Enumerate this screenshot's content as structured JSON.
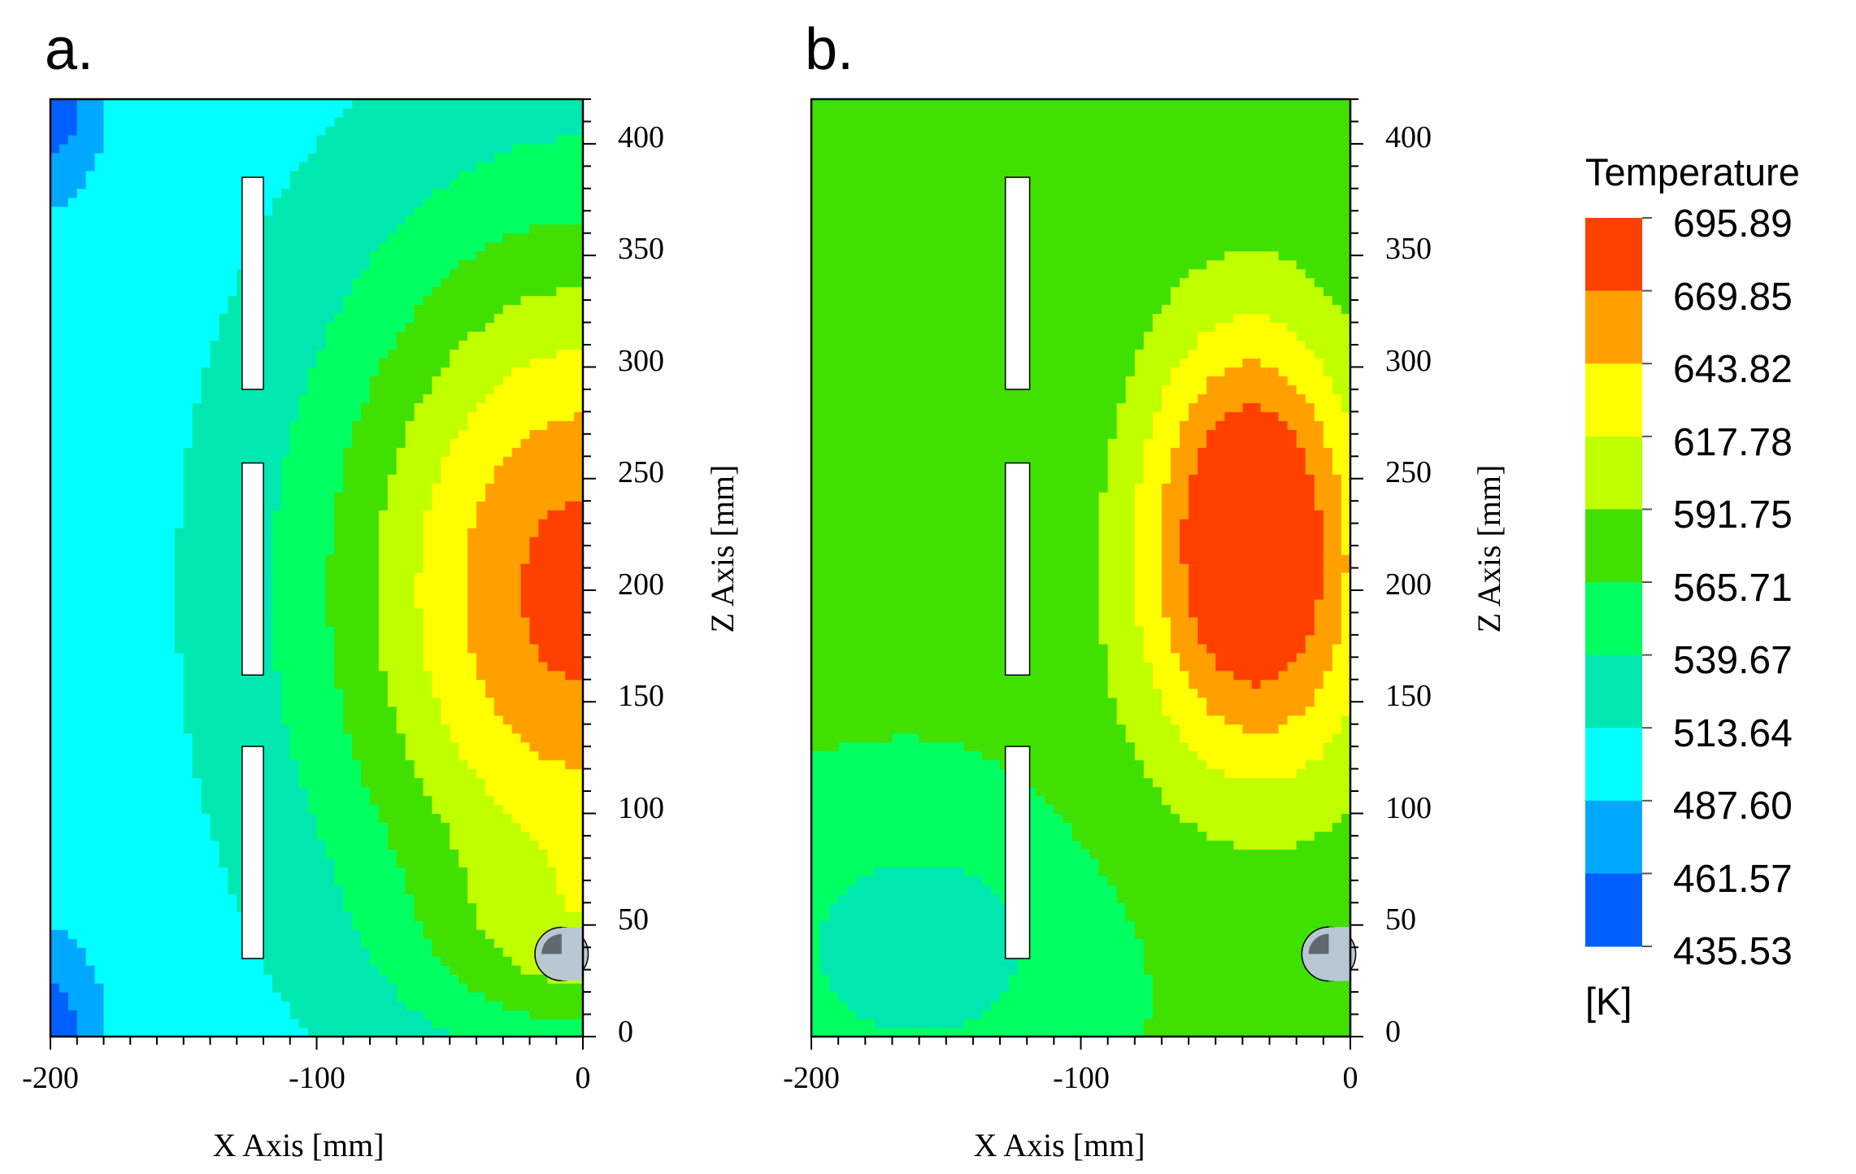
{
  "chart_data": [
    {
      "type": "heatmap",
      "panel_label": "a.",
      "xlabel": "X Axis [mm]",
      "ylabel": "Z Axis [mm]",
      "xlim": [
        -200,
        0
      ],
      "ylim": [
        0,
        420
      ],
      "x_ticks": [
        -200,
        -100,
        0
      ],
      "y_ticks": [
        0,
        50,
        100,
        150,
        200,
        250,
        300,
        350,
        400
      ],
      "field": {
        "base": 500,
        "hotspots": [
          {
            "x": 0,
            "z": 200,
            "peak": 180,
            "sx": 95,
            "sz": 165
          },
          {
            "x": 0,
            "z": 40,
            "peak": 40,
            "sx": 60,
            "sz": 40
          }
        ],
        "coldspots": [
          {
            "x": -200,
            "z": 420,
            "drop": 55,
            "sx": 18,
            "sz": 40
          },
          {
            "x": -200,
            "z": 0,
            "drop": 55,
            "sx": 18,
            "sz": 40
          }
        ]
      },
      "obstacles": [
        {
          "type": "plate",
          "x0": -128,
          "x1": -120,
          "z0": 290,
          "z1": 385
        },
        {
          "type": "plate",
          "x0": -128,
          "x1": -120,
          "z0": 162,
          "z1": 257
        },
        {
          "type": "plate",
          "x0": -128,
          "x1": -120,
          "z0": 35,
          "z1": 130
        },
        {
          "type": "nozzle",
          "x": -8,
          "z": 37,
          "r": 10
        }
      ]
    },
    {
      "type": "heatmap",
      "panel_label": "b.",
      "xlabel": "X Axis [mm]",
      "ylabel": "Z Axis [mm]",
      "xlim": [
        -200,
        0
      ],
      "ylim": [
        0,
        420
      ],
      "x_ticks": [
        -200,
        -100,
        0
      ],
      "y_ticks": [
        0,
        50,
        100,
        150,
        200,
        250,
        300,
        350,
        400
      ],
      "field": {
        "base": 568,
        "hotspots": [
          {
            "x": -37,
            "z": 235,
            "peak": 130,
            "sx": 40,
            "sz": 90
          },
          {
            "x": -30,
            "z": 160,
            "peak": 40,
            "sx": 55,
            "sz": 80
          }
        ],
        "coldspots": [
          {
            "x": -160,
            "z": 40,
            "drop": 45,
            "sx": 55,
            "sz": 55
          }
        ]
      },
      "obstacles": [
        {
          "type": "plate",
          "x0": -128,
          "x1": -119,
          "z0": 290,
          "z1": 385
        },
        {
          "type": "plate",
          "x0": -128,
          "x1": -119,
          "z0": 162,
          "z1": 257
        },
        {
          "type": "plate",
          "x0": -128,
          "x1": -119,
          "z0": 35,
          "z1": 130
        },
        {
          "type": "nozzle",
          "x": -8,
          "z": 37,
          "r": 10
        }
      ]
    }
  ],
  "legend": {
    "title": "Temperature",
    "unit": "[K]",
    "levels": [
      "695.89",
      "669.85",
      "643.82",
      "617.78",
      "591.75",
      "565.71",
      "539.67",
      "513.64",
      "487.60",
      "461.57",
      "435.53"
    ],
    "colors": [
      "#ff4000",
      "#ffa000",
      "#ffff00",
      "#c0ff00",
      "#40e000",
      "#00ff60",
      "#00e8b0",
      "#00ffff",
      "#00a8ff",
      "#0060ff"
    ]
  }
}
